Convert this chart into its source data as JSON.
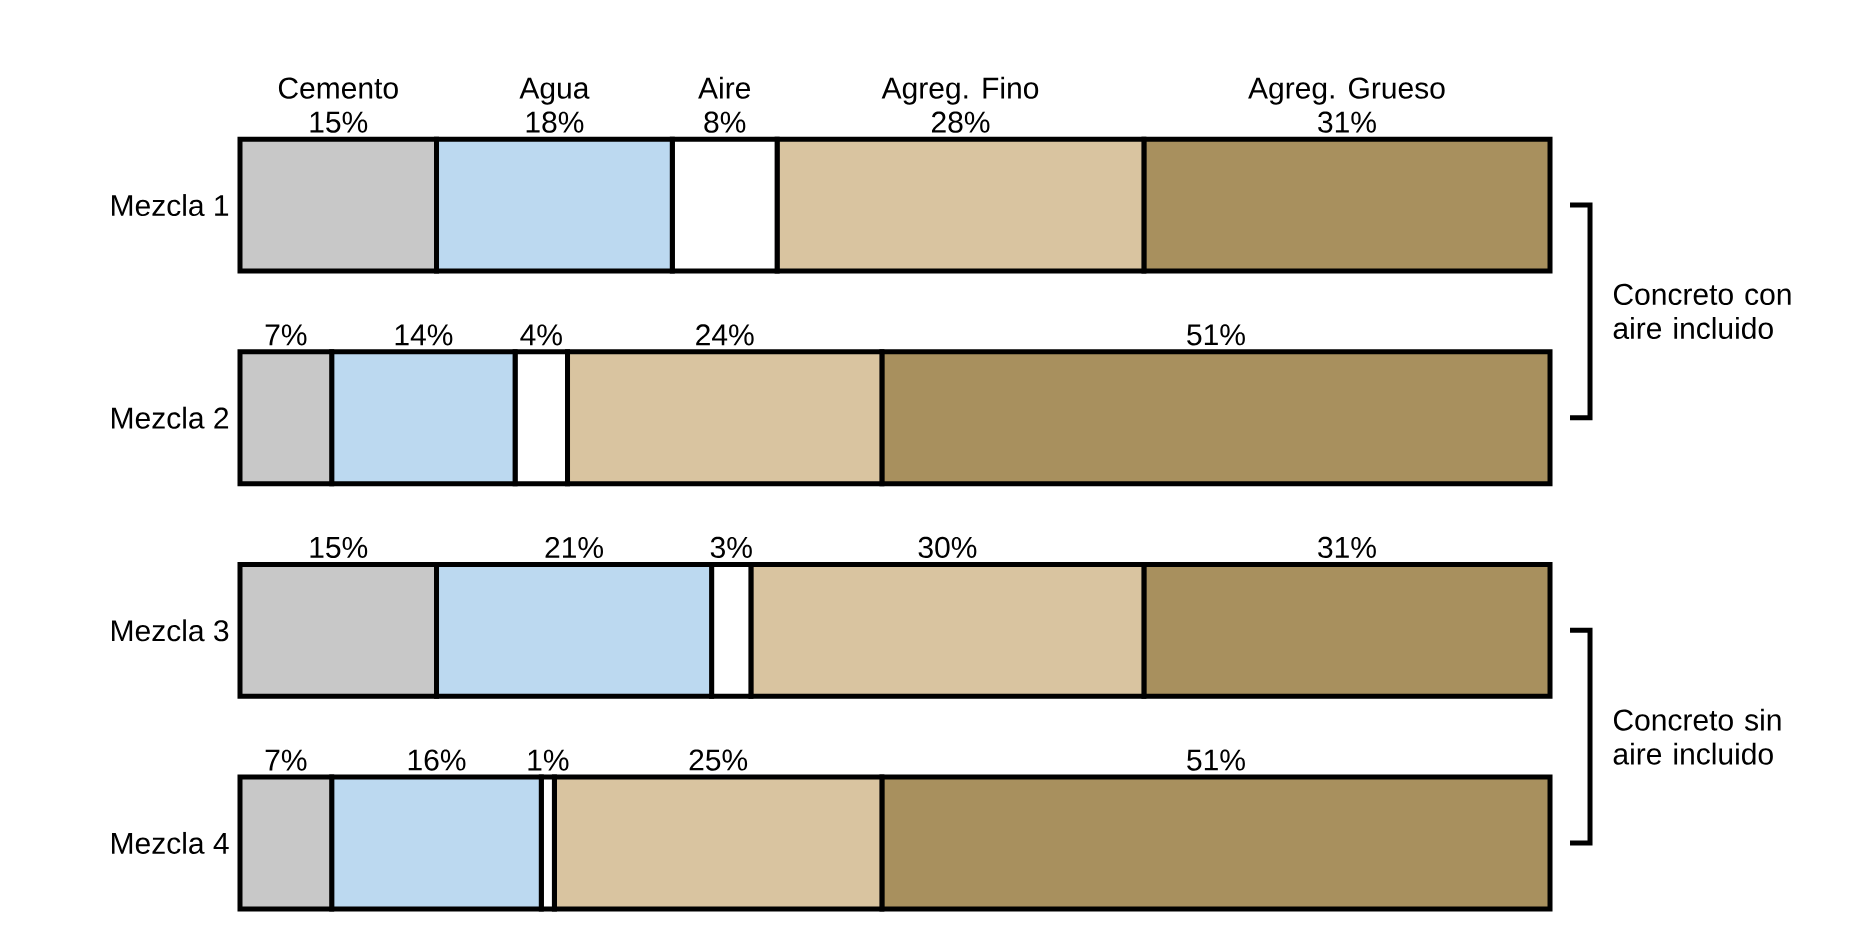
{
  "chart_data": {
    "type": "bar",
    "orientation": "horizontal",
    "stacked": true,
    "categories": [
      "Mezcla 1",
      "Mezcla 2",
      "Mezcla 3",
      "Mezcla 4"
    ],
    "xlim": [
      0,
      100
    ],
    "series": [
      {
        "name": "Cemento",
        "color": "#c8c8c8",
        "values": [
          15,
          7,
          15,
          7
        ],
        "value_labels": [
          "15%",
          "7%",
          "15%",
          "7%"
        ]
      },
      {
        "name": "Agua",
        "color": "#bcd9f0",
        "values": [
          18,
          14,
          21,
          16
        ],
        "value_labels": [
          "18%",
          "14%",
          "21%",
          "16%"
        ]
      },
      {
        "name": "Aire",
        "color": "#ffffff",
        "values": [
          8,
          4,
          3,
          1
        ],
        "value_labels": [
          "8%",
          "4%",
          "3%",
          "1%"
        ]
      },
      {
        "name": "Agreg. Fino",
        "color": "#d9c4a0",
        "values": [
          28,
          24,
          30,
          25
        ],
        "value_labels": [
          "28%",
          "24%",
          "30%",
          "25%"
        ]
      },
      {
        "name": "Agreg. Grueso",
        "color": "#a8905e",
        "values": [
          31,
          51,
          31,
          51
        ],
        "value_labels": [
          "31%",
          "51%",
          "31%",
          "51%"
        ]
      }
    ],
    "annotations": [
      "Concreto con aire incluido",
      "Concreto sin aire incluido"
    ]
  }
}
